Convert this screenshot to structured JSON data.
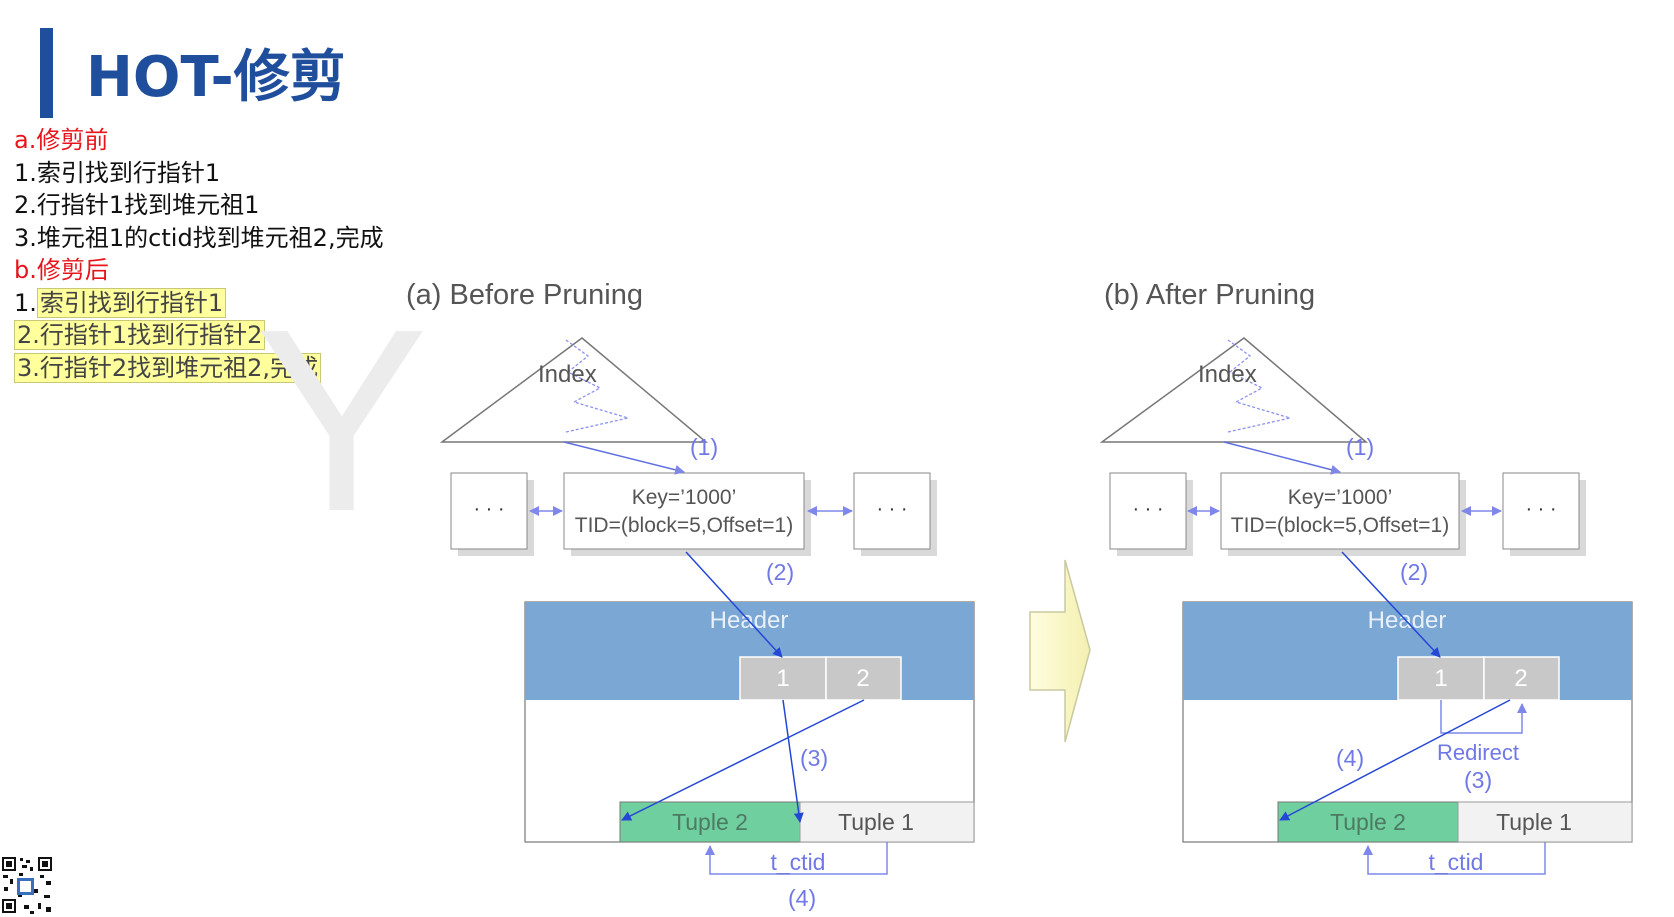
{
  "slide": {
    "title": "HOT-修剪"
  },
  "notes": {
    "before_heading": "a.修剪前",
    "before_steps": [
      "1.索引找到行指针1",
      "2.行指针1找到堆元祖1",
      "3.堆元祖1的ctid找到堆元祖2,完成"
    ],
    "after_heading": "b.修剪后",
    "after_steps": [
      {
        "prefix": "1.",
        "highlight": "索引找到行指针1"
      },
      {
        "prefix": "",
        "highlight": "2.行指针1找到行指针2"
      },
      {
        "prefix": "",
        "highlight": "3.行指针2找到堆元祖2,完成"
      }
    ]
  },
  "diagram_before": {
    "caption": "(a) Before Pruning",
    "index_label": "Index",
    "dots_left": "· · ·",
    "dots_right": "· · ·",
    "key_line1": "Key=’1000’",
    "key_line2": "TID=(block=5,Offset=1)",
    "header_label": "Header",
    "pointer_1": "1",
    "pointer_2": "2",
    "tuple_a": "Tuple  2",
    "tuple_b": "Tuple 1",
    "ctid_label": "t_ctid",
    "step_1": "(1)",
    "step_2": "(2)",
    "step_3": "(3)",
    "step_4": "(4)"
  },
  "diagram_after": {
    "caption": "(b) After Pruning",
    "index_label": "Index",
    "dots_left": "· · ·",
    "dots_right": "· · ·",
    "key_line1": "Key=’1000’",
    "key_line2": "TID=(block=5,Offset=1)",
    "header_label": "Header",
    "pointer_1": "1",
    "pointer_2": "2",
    "tuple_a": "Tuple  2",
    "tuple_b": "Tuple 1",
    "ctid_label": "t_ctid",
    "redirect_label": "Redirect",
    "step_1": "(1)",
    "step_2": "(2)",
    "step_3": "(3)",
    "step_4": "(4)"
  },
  "colors": {
    "title_blue": "#1f4e9c",
    "heading_red": "#e8141b",
    "highlight_yellow": "#ffff9c",
    "header_blue": "#7ba7d4",
    "tuple_green": "#6fcf9f",
    "pointer_gray": "#c8c8c8",
    "arrow_blue": "#2447d6",
    "annotation_blue": "#5f6fe0"
  }
}
